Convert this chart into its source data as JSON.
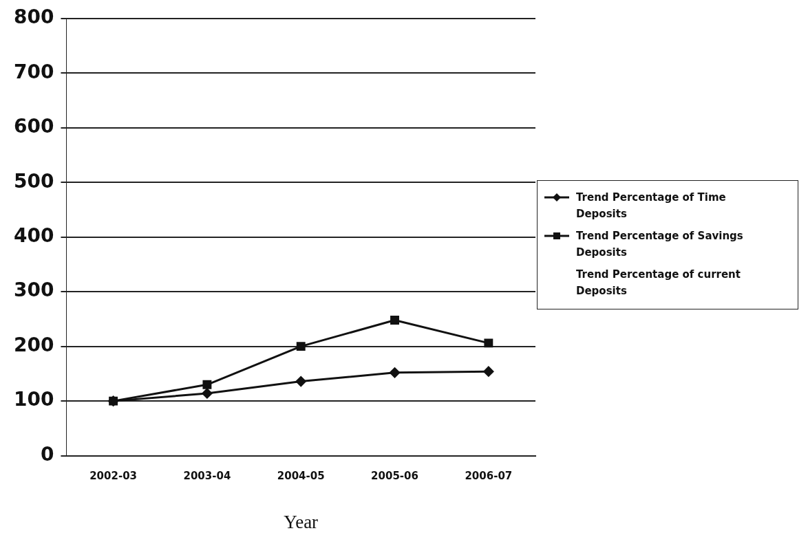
{
  "chart_data": {
    "type": "line",
    "xlabel": "Year",
    "categories": [
      "2002-03",
      "2003-04",
      "2004-05",
      "2005-06",
      "2006-07"
    ],
    "series": [
      {
        "name": "Trend Percentage of Time Deposits",
        "color": "#111111",
        "marker": "diamond",
        "values": [
          100,
          114,
          136,
          152,
          154
        ]
      },
      {
        "name": "Trend Percentage of Savings Deposits",
        "color": "#111111",
        "marker": "square",
        "values": [
          100,
          130,
          200,
          248,
          206
        ]
      },
      {
        "name": "Trend Percentage of current Deposits",
        "marker": "none",
        "values": [
          null,
          null,
          null,
          null,
          null
        ]
      }
    ],
    "ylim": [
      0,
      800
    ],
    "yticks": [
      0,
      100,
      200,
      300,
      400,
      500,
      600,
      700,
      800
    ],
    "grid": "y",
    "legend": "right",
    "line_style": "solid"
  }
}
